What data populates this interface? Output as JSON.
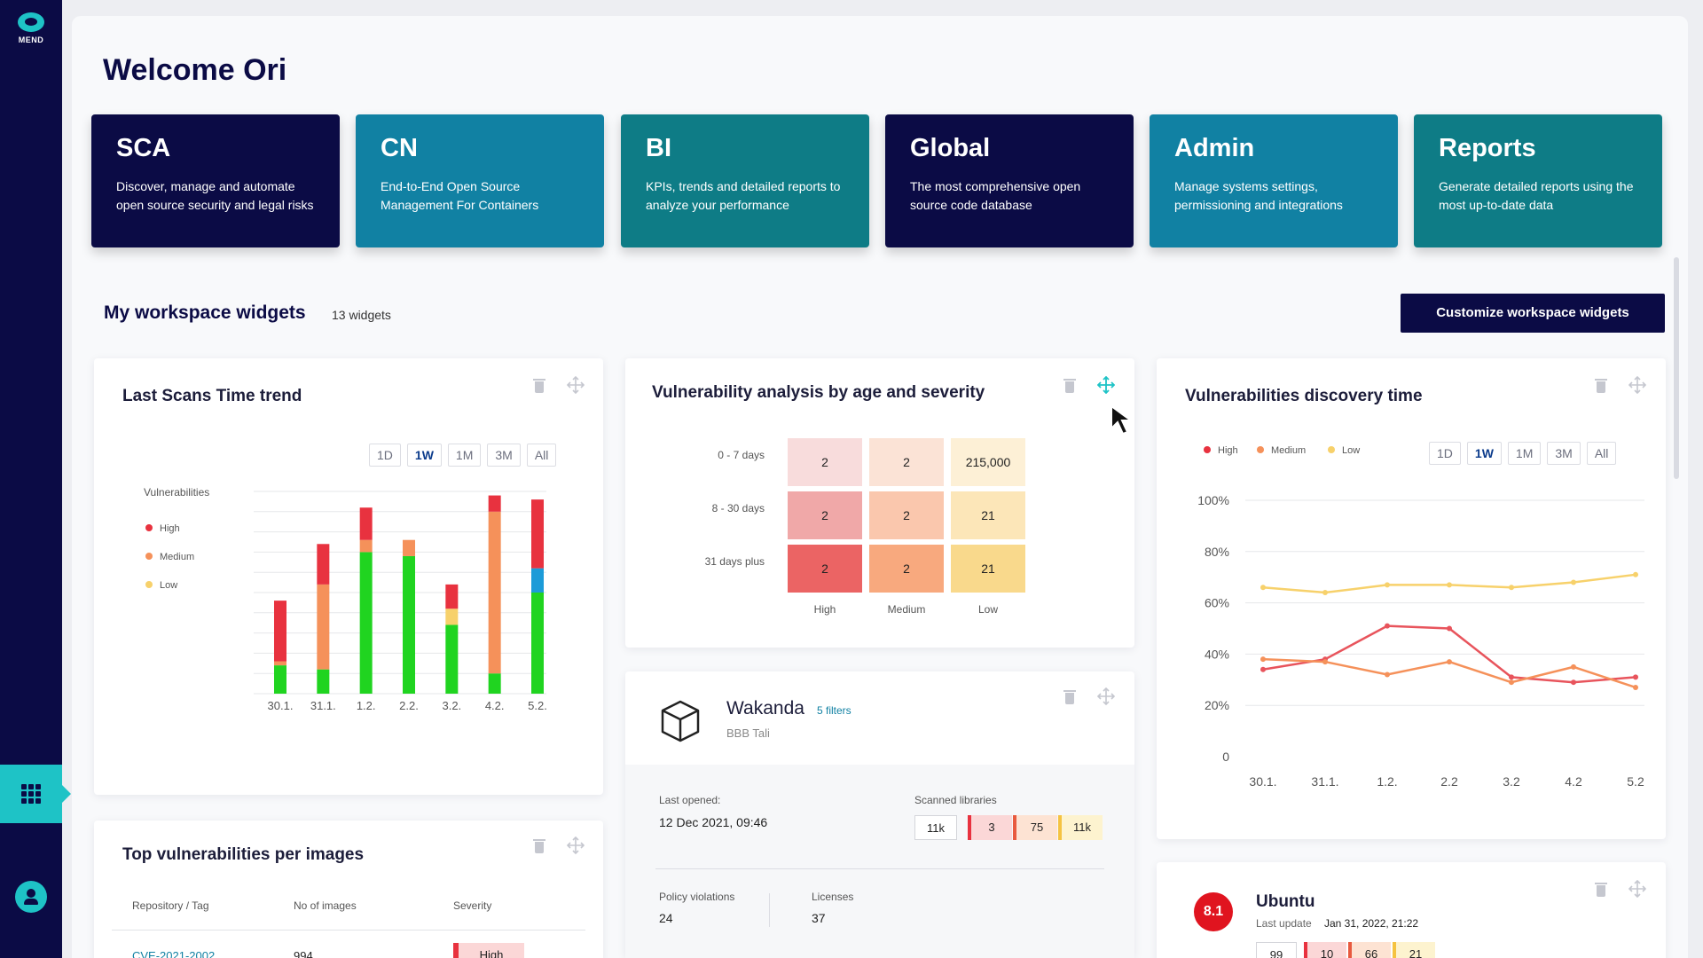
{
  "brand": {
    "name": "MEND"
  },
  "header": {
    "welcome": "Welcome Ori"
  },
  "products": [
    {
      "title": "SCA",
      "desc": "Discover, manage and automate open source security and legal risks"
    },
    {
      "title": "CN",
      "desc": "End-to-End Open Source Management For Containers"
    },
    {
      "title": "BI",
      "desc": "KPIs, trends and detailed reports to analyze your performance"
    },
    {
      "title": "Global",
      "desc": "The most comprehensive open source code database"
    },
    {
      "title": "Admin",
      "desc": "Manage systems settings, permissioning and integrations"
    },
    {
      "title": "Reports",
      "desc": "Generate detailed reports using the most up-to-date data"
    }
  ],
  "workspace": {
    "title": "My workspace widgets",
    "count": "13 widgets",
    "customize_label": "Customize workspace widgets"
  },
  "colors": {
    "navy": "#0b0b45",
    "teal": "#1ec3c6",
    "high": "#e8323f",
    "medium": "#f5915a",
    "low": "#f7d16b",
    "green": "#20d420",
    "blue": "#1c9bd8"
  },
  "scans_widget": {
    "title": "Last Scans Time trend",
    "ranges": [
      "1D",
      "1W",
      "1M",
      "3M",
      "All"
    ],
    "active_range": "1W",
    "legend_title": "Vulnerabilities",
    "legend": [
      "High",
      "Medium",
      "Low"
    ],
    "chart_data": {
      "type": "bar",
      "stacked": true,
      "categories": [
        "30.1.",
        "31.1.",
        "1.2.",
        "2.2.",
        "3.2.",
        "4.2.",
        "5.2."
      ],
      "ylim": [
        0,
        25
      ],
      "grid": true,
      "series": [
        {
          "color": "#20d420",
          "values": [
            3.5,
            3,
            17.5,
            17,
            8.5,
            2.5,
            12.5
          ]
        },
        {
          "color": "#f5915a",
          "values": [
            0.5,
            10.5,
            1.5,
            2,
            0,
            20,
            0
          ]
        },
        {
          "color": "#f7d16b",
          "values": [
            0,
            0,
            0,
            0,
            2,
            0,
            0
          ]
        },
        {
          "color": "#1c9bd8",
          "values": [
            0,
            0,
            0,
            0,
            0,
            0,
            3
          ]
        },
        {
          "color": "#e8323f",
          "values": [
            7.5,
            5,
            4,
            0,
            3,
            2,
            8.5
          ]
        }
      ]
    }
  },
  "age_widget": {
    "title": "Vulnerability analysis by age and severity",
    "rows": [
      "0 - 7 days",
      "8 - 30 days",
      "31 days plus"
    ],
    "cols": [
      "High",
      "Medium",
      "Low"
    ],
    "cells": [
      [
        "2",
        "2",
        "215,000"
      ],
      [
        "2",
        "2",
        "21"
      ],
      [
        "2",
        "2",
        "21"
      ]
    ],
    "cell_colors": [
      [
        "#f8dcdc",
        "#fbe3d6",
        "#fdf0d6"
      ],
      [
        "#f0a8a8",
        "#fac7ad",
        "#fce6b8"
      ],
      [
        "#eb6464",
        "#f8a97e",
        "#f9d98c"
      ]
    ]
  },
  "wakanda": {
    "name": "Wakanda",
    "filters": "5 filters",
    "owner": "BBB Tali",
    "last_opened_label": "Last opened:",
    "last_opened": "12 Dec 2021, 09:46",
    "scanned_label": "Scanned libraries",
    "scanned": [
      "11k",
      "3",
      "75",
      "11k"
    ],
    "policy_label": "Policy violations",
    "policy": "24",
    "licenses_label": "Licenses",
    "licenses": "37"
  },
  "discovery_widget": {
    "title": "Vulnerabilities discovery time",
    "legend": [
      "High",
      "Medium",
      "Low"
    ],
    "ranges": [
      "1D",
      "1W",
      "1M",
      "3M",
      "All"
    ],
    "active_range": "1W",
    "chart_data": {
      "type": "line",
      "x": [
        "30.1.",
        "31.1.",
        "1.2.",
        "2.2",
        "3.2",
        "4.2",
        "5.2"
      ],
      "ytick_labels": [
        "0",
        "20%",
        "40%",
        "60%",
        "80%",
        "100%"
      ],
      "ylim": [
        0,
        100
      ],
      "grid": true,
      "series": [
        {
          "name": "High",
          "color": "#e8545c",
          "values": [
            34,
            38,
            51,
            50,
            31,
            29,
            31
          ]
        },
        {
          "name": "Medium",
          "color": "#f5915a",
          "values": [
            38,
            37,
            32,
            37,
            29,
            35,
            27
          ]
        },
        {
          "name": "Low",
          "color": "#f7d16b",
          "values": [
            66,
            64,
            67,
            67,
            66,
            68,
            71
          ]
        }
      ]
    }
  },
  "top_vuln_widget": {
    "title": "Top vulnerabilities per images",
    "columns": [
      "Repository / Tag",
      "No of images",
      "Severity"
    ],
    "rows": [
      {
        "repo": "CVE-2021-2002",
        "images": "994",
        "severity": "High"
      }
    ]
  },
  "ubuntu_widget": {
    "name": "Ubuntu",
    "score": "8.1",
    "last_update_label": "Last update",
    "last_update": "Jan 31, 2022, 21:22",
    "counts": [
      "99",
      "10",
      "66",
      "21"
    ]
  }
}
